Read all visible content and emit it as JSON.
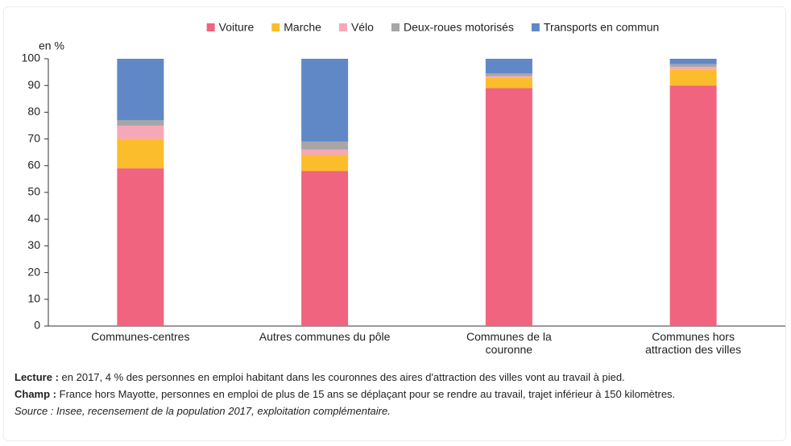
{
  "chart_data": {
    "type": "stacked_bar",
    "y_unit": "en %",
    "categories": [
      "Communes-centres",
      "Autres communes du pôle",
      "Communes de la\ncouronne",
      "Communes hors\nattraction des villes"
    ],
    "series": [
      {
        "name": "Voiture",
        "color": "#f0647f",
        "values": [
          59,
          58,
          89,
          90
        ]
      },
      {
        "name": "Marche",
        "color": "#fbbd2c",
        "values": [
          11,
          6,
          4,
          6
        ]
      },
      {
        "name": "Vélo",
        "color": "#f7a8b8",
        "values": [
          5,
          2,
          0.5,
          1
        ]
      },
      {
        "name": "Deux-roues motorisés",
        "color": "#a6a6a6",
        "values": [
          2,
          3,
          1,
          1
        ]
      },
      {
        "name": "Transports en commun",
        "color": "#6088c6",
        "values": [
          23,
          31,
          5.5,
          2
        ]
      }
    ],
    "ylim": [
      0,
      100
    ],
    "yticks": [
      0,
      10,
      20,
      30,
      40,
      50,
      60,
      70,
      80,
      90,
      100
    ],
    "grid": false,
    "legend": "top"
  },
  "notes": [
    {
      "label": "Lecture :",
      "text": "en 2017, 4 % des personnes en emploi habitant dans les couronnes des aires d'attraction des villes vont au travail à pied."
    },
    {
      "label": "Champ :",
      "text": "France hors Mayotte, personnes en emploi de plus de 15 ans se déplaçant pour se rendre au travail, trajet inférieur à 150 kilomètres."
    }
  ],
  "source": "Source : Insee, recensement de la population 2017, exploitation complémentaire."
}
